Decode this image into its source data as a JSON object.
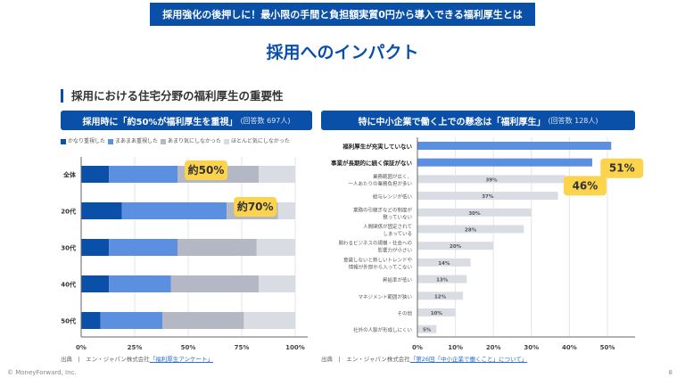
{
  "banner": "採用強化の後押しに！最小限の手間と負担額実質0円から導入できる福利厚生とは",
  "title": "採用へのインパクト",
  "section_heading": "採用における住宅分野の福利厚生の重要性",
  "colors": {
    "accent": "#0a50a8",
    "s1": "#0a50a8",
    "s2": "#5b8fe0",
    "s3": "#b4b8c4",
    "s4": "#dadce3",
    "callout": "#fcd34d"
  },
  "left": {
    "header": "採用時に「約50%が福利厚生を重視」",
    "header_note": "(回答数 697人)",
    "legend": [
      "かなり重視した",
      "まあまあ重視した",
      "あまり気にしなかった",
      "ほとんど気にしなかった"
    ],
    "callouts": [
      {
        "row": 0,
        "label": "約50%"
      },
      {
        "row": 1,
        "label": "約70%"
      }
    ],
    "source_label": "出典",
    "source_text": "エン・ジャパン株式会社",
    "source_link": "「福利厚生アンケート」"
  },
  "right": {
    "header": "特に中小企業で働く上での懸念は「福利厚生」",
    "header_note": "(回答数 128人)",
    "callouts": [
      {
        "row": 0,
        "label": "51%"
      },
      {
        "row": 1,
        "label": "46%"
      }
    ],
    "source_label": "出典",
    "source_text": "エン・ジャパン株式会社",
    "source_link": "「第26回「中小企業で働くこと」について」"
  },
  "chart_data": [
    {
      "type": "bar",
      "orientation": "horizontal",
      "stacked": true,
      "categories": [
        "全体",
        "20代",
        "30代",
        "40代",
        "50代"
      ],
      "series": [
        {
          "name": "かなり重視した",
          "values": [
            13,
            19,
            13,
            13,
            9
          ]
        },
        {
          "name": "まあまあ重視した",
          "values": [
            32,
            49,
            32,
            29,
            29
          ]
        },
        {
          "name": "あまり気にしなかった",
          "values": [
            38,
            24,
            37,
            41,
            38
          ]
        },
        {
          "name": "ほとんど気にしなかった",
          "values": [
            17,
            8,
            18,
            17,
            24
          ]
        }
      ],
      "xlim": [
        0,
        100
      ],
      "xticks": [
        "0%",
        "25%",
        "50%",
        "75%",
        "100%"
      ],
      "grid": true,
      "legend": "top-left"
    },
    {
      "type": "bar",
      "orientation": "horizontal",
      "categories": [
        "福利厚生が充実していない",
        "事業が長期的に続く保証がない",
        "業務範囲が広く、\n一人あたりの業務負担が多い",
        "給与レンジが低い",
        "業務の引継ぎなどの制度が\n整っていない",
        "人間関係が固定されて\nしまっている",
        "関わるビジネスの規模・社会への\n影響力が小さい",
        "意識しないと新しいトレンドや\n情報が外部から入ってこない",
        "昇給率が低い",
        "マネジメント範囲が狭い",
        "その他",
        "社外の人脈が形成しにくい"
      ],
      "values": [
        51,
        46,
        39,
        37,
        30,
        28,
        20,
        14,
        13,
        12,
        10,
        5
      ],
      "value_labels": [
        "",
        "",
        "39%",
        "37%",
        "30%",
        "28%",
        "20%",
        "14%",
        "13%",
        "12%",
        "10%",
        "5%"
      ],
      "xlim": [
        0,
        55
      ],
      "xticks": [
        "0%",
        "10%",
        "20%",
        "30%",
        "40%",
        "50%"
      ],
      "grid": true
    }
  ],
  "footer": {
    "copyright": "© MoneyForward, Inc.",
    "page": "8"
  }
}
